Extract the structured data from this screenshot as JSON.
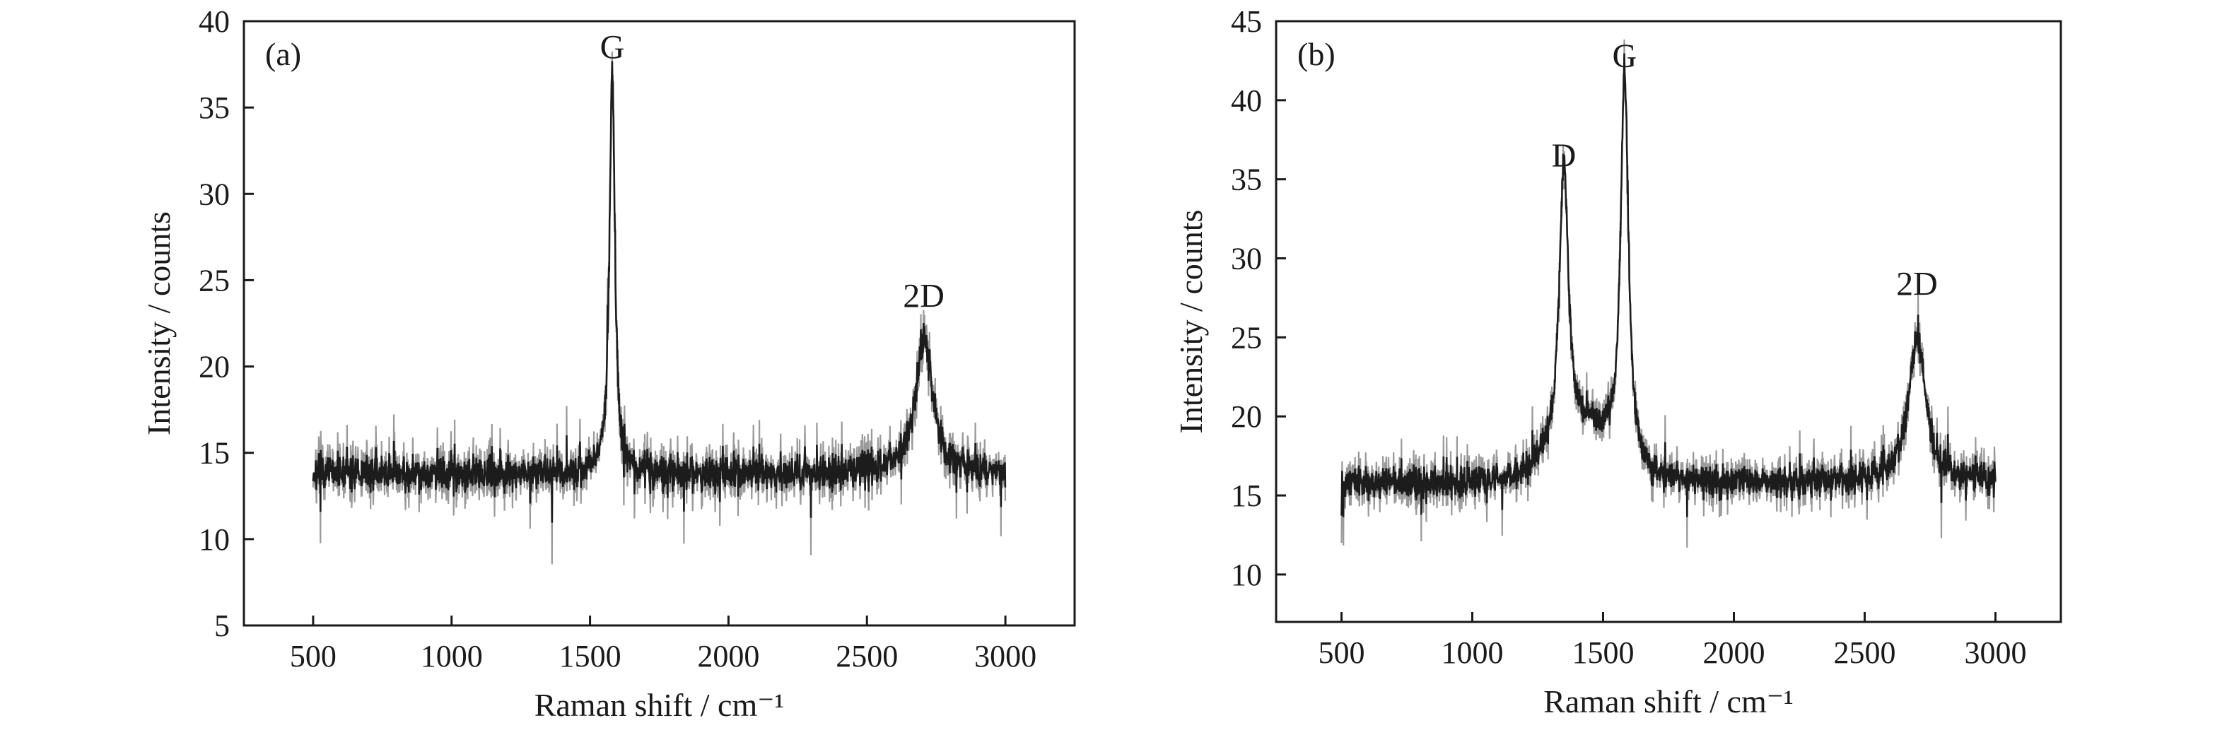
{
  "chart_data": [
    {
      "panel_label": "(a)",
      "type": "line",
      "xlabel": "Raman shift / cm⁻¹",
      "ylabel": "Intensity / counts",
      "xlim": [
        250,
        3250
      ],
      "ylim": [
        5,
        40
      ],
      "xticks": [
        500,
        1000,
        1500,
        2000,
        2500,
        3000
      ],
      "yticks": [
        5,
        10,
        15,
        20,
        25,
        30,
        35,
        40
      ],
      "baseline": 13.8,
      "noise_amplitude": 1.8,
      "spike_amplitude": 3.5,
      "seed": 7,
      "x_range": [
        500,
        3000
      ],
      "peaks": [
        {
          "label": "G",
          "x": 1580,
          "y": 37,
          "width": 12
        },
        {
          "label": "2D",
          "x": 2705,
          "y": 21.6,
          "width": 38
        }
      ],
      "annotations": [
        {
          "text": "G",
          "x": 1580,
          "y": 38.5
        },
        {
          "text": "2D",
          "x": 2705,
          "y": 24.1
        }
      ],
      "grid": false,
      "legend": "none"
    },
    {
      "panel_label": "(b)",
      "type": "line",
      "xlabel": "Raman shift / cm⁻¹",
      "ylabel": "Intensity / counts",
      "xlim": [
        250,
        3250
      ],
      "ylim": [
        7,
        45
      ],
      "xticks": [
        500,
        1000,
        1500,
        2000,
        2500,
        3000
      ],
      "yticks": [
        10,
        15,
        20,
        25,
        30,
        35,
        40,
        45
      ],
      "baseline": 15.8,
      "noise_amplitude": 1.7,
      "spike_amplitude": 3.2,
      "seed": 13,
      "x_range": [
        500,
        3000
      ],
      "peaks": [
        {
          "label": "D",
          "x": 1350,
          "y": 33.5,
          "width": 20
        },
        {
          "label": "G",
          "x": 1582,
          "y": 40.5,
          "width": 18
        },
        {
          "label": "2D",
          "x": 2700,
          "y": 25,
          "width": 40
        }
      ],
      "annotations": [
        {
          "text": "D",
          "x": 1350,
          "y": 36.5
        },
        {
          "text": "G",
          "x": 1582,
          "y": 42.8
        },
        {
          "text": "2D",
          "x": 2700,
          "y": 28.4
        }
      ],
      "grid": false,
      "legend": "none"
    }
  ]
}
